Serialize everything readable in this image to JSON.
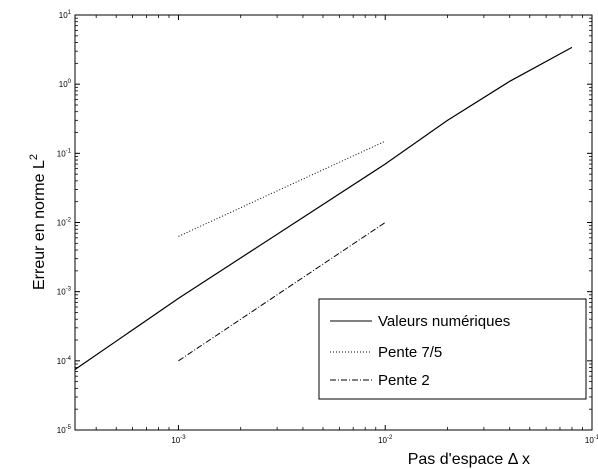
{
  "chart_data": {
    "type": "line",
    "xscale": "log",
    "yscale": "log",
    "xlim": [
      0.000316,
      0.1
    ],
    "ylim": [
      1e-05,
      10
    ],
    "xlabel": "Pas d'espace Δ x",
    "ylabel": "Erreur en norme L",
    "ylabel_sup": "2",
    "x_ticks": [
      {
        "value": 0.001,
        "base": "10",
        "exp": "-3"
      },
      {
        "value": 0.01,
        "base": "10",
        "exp": "-2"
      },
      {
        "value": 0.1,
        "base": "10",
        "exp": "-1"
      }
    ],
    "y_ticks": [
      {
        "value": 1e-05,
        "base": "10",
        "exp": "-5"
      },
      {
        "value": 0.0001,
        "base": "10",
        "exp": "-4"
      },
      {
        "value": 0.001,
        "base": "10",
        "exp": "-3"
      },
      {
        "value": 0.01,
        "base": "10",
        "exp": "-2"
      },
      {
        "value": 0.1,
        "base": "10",
        "exp": "-1"
      },
      {
        "value": 1,
        "base": "10",
        "exp": "0"
      },
      {
        "value": 10,
        "base": "10",
        "exp": "1"
      }
    ],
    "grid": false,
    "legend_position": "bottom-right",
    "series": [
      {
        "name": "Valeurs numériques",
        "style": "solid",
        "color": "#000000",
        "x": [
          0.000316,
          0.001,
          0.01,
          0.02,
          0.04,
          0.08
        ],
        "y": [
          7.5e-05,
          0.0008,
          0.07,
          0.3,
          1.1,
          3.4
        ]
      },
      {
        "name": "Pente 7/5",
        "style": "dotted",
        "color": "#000000",
        "x": [
          0.001,
          0.01
        ],
        "y": [
          0.0063,
          0.15
        ]
      },
      {
        "name": "Pente 2",
        "style": "dashdot",
        "color": "#000000",
        "x": [
          0.001,
          0.01
        ],
        "y": [
          0.0001,
          0.01
        ]
      }
    ]
  }
}
